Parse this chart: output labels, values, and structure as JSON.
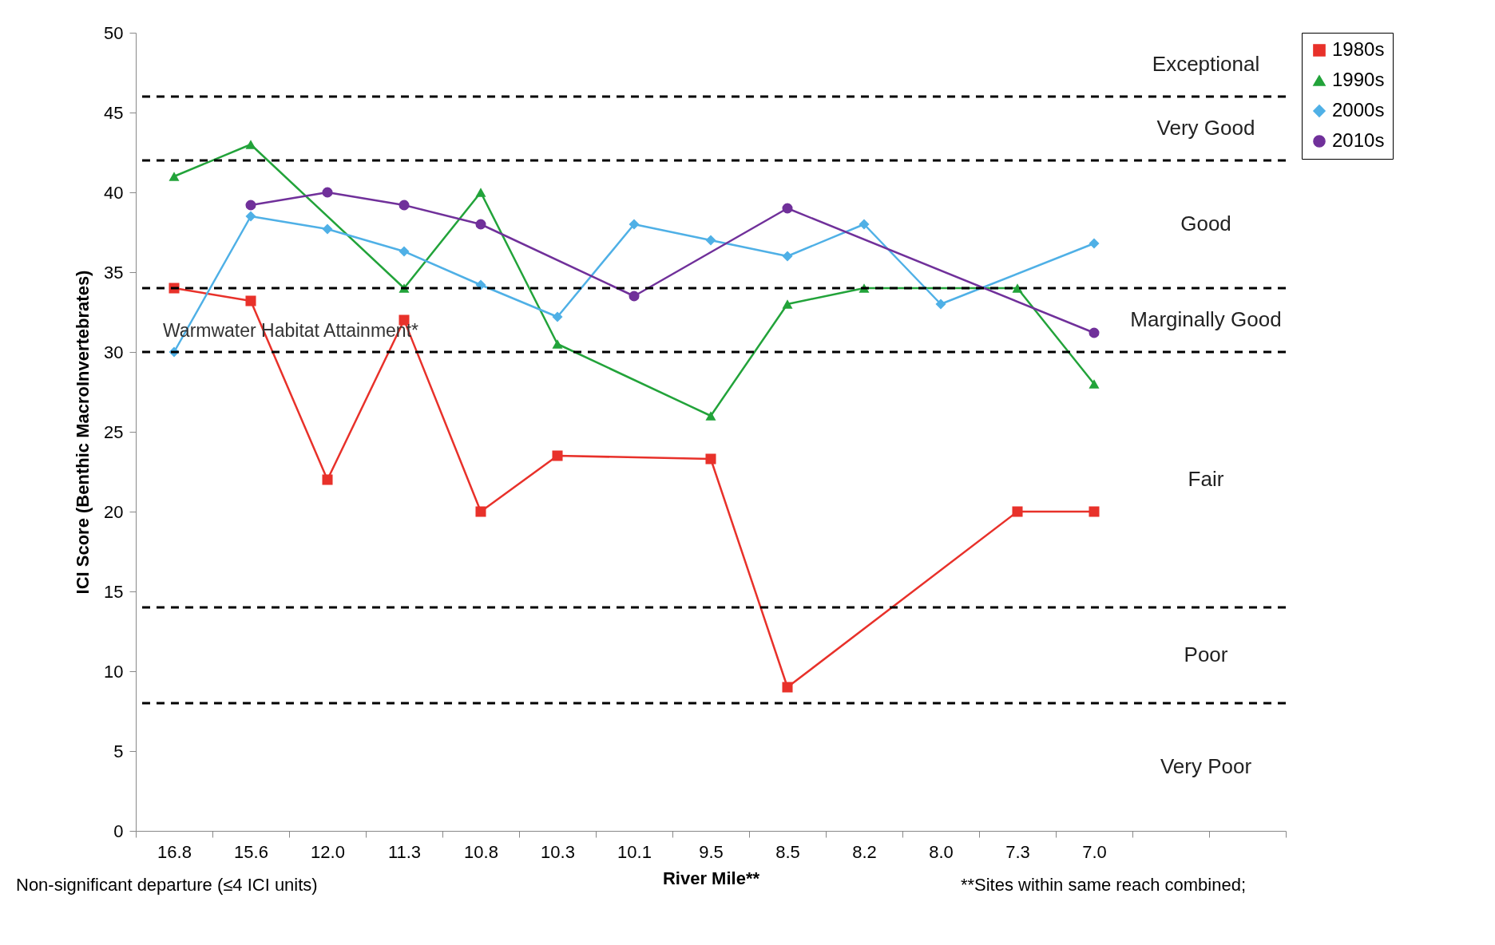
{
  "chart_data": {
    "type": "line",
    "xlabel": "River Mile**",
    "ylabel": "ICI Score (Benthic MacroInvertebrates)",
    "categories": [
      "16.8",
      "15.6",
      "12.0",
      "11.3",
      "10.8",
      "10.3",
      "10.1",
      "9.5",
      "8.5",
      "8.2",
      "8.0",
      "7.3",
      "7.0",
      null,
      null
    ],
    "series": [
      {
        "name": "1980s",
        "color": "#e8312a",
        "marker": "square",
        "values": [
          34,
          33.2,
          22,
          32,
          20,
          23.5,
          null,
          23.3,
          9,
          null,
          null,
          20,
          20,
          null,
          null
        ]
      },
      {
        "name": "1990s",
        "color": "#22a33a",
        "marker": "triangle",
        "values": [
          41,
          43,
          null,
          34,
          40,
          30.5,
          null,
          26,
          33,
          34,
          null,
          34,
          28,
          null,
          null
        ]
      },
      {
        "name": "2000s",
        "color": "#4fb0e6",
        "marker": "diamond",
        "values": [
          30,
          38.5,
          37.7,
          36.3,
          34.2,
          32.2,
          38,
          37,
          36,
          38,
          33,
          null,
          36.8,
          null,
          null
        ]
      },
      {
        "name": "2010s",
        "color": "#70309a",
        "marker": "circle",
        "values": [
          null,
          39.2,
          40,
          39.2,
          38,
          null,
          33.5,
          null,
          39,
          null,
          null,
          null,
          31.2,
          null,
          null
        ]
      }
    ],
    "ylim": [
      0,
      50
    ],
    "yticks": [
      0,
      5,
      10,
      15,
      20,
      25,
      30,
      35,
      40,
      45,
      50
    ],
    "ref_lines": [
      {
        "axis": "y",
        "value": 46,
        "line_style": "dashed",
        "color": "#000000"
      },
      {
        "axis": "y",
        "value": 42,
        "line_style": "dashed",
        "color": "#000000"
      },
      {
        "axis": "y",
        "value": 34,
        "line_style": "dashed",
        "color": "#000000"
      },
      {
        "axis": "y",
        "value": 30,
        "line_style": "dashed",
        "color": "#000000",
        "label": "Warmwater Habitat Attainment*"
      },
      {
        "axis": "y",
        "value": 14,
        "line_style": "dashed",
        "color": "#000000"
      },
      {
        "axis": "y",
        "value": 8,
        "line_style": "dashed",
        "color": "#000000"
      }
    ],
    "annotations": [
      "Exceptional",
      "Very Good",
      "Good",
      "Marginally Good",
      "Fair",
      "Poor",
      "Very Poor",
      "Non-significant departure (≤4 ICI units)",
      "**Sites within same reach combined;"
    ],
    "legend": "right",
    "grid": false
  }
}
